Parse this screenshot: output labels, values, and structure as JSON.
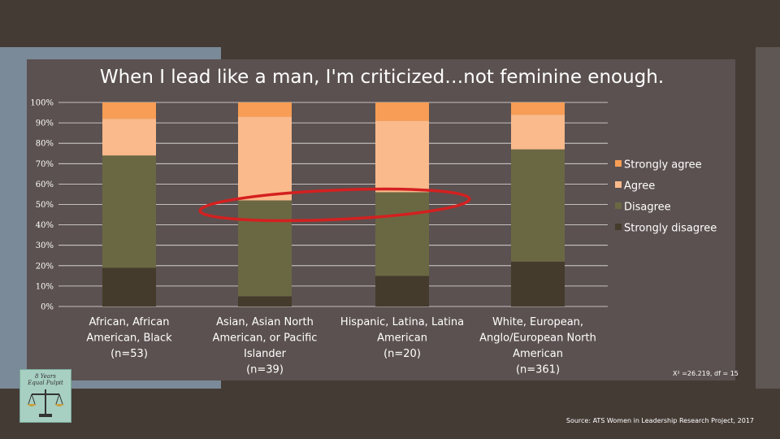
{
  "chart_data": {
    "type": "bar",
    "stacked": true,
    "title": "When I lead like a man, I'm criticized…not feminine enough.",
    "categories": [
      [
        "African, African",
        "American, Black",
        "(n=53)"
      ],
      [
        "Asian, Asian North",
        "American, or Pacific",
        "Islander",
        "(n=39)"
      ],
      [
        "Hispanic, Latina, Latina",
        "American",
        "(n=20)"
      ],
      [
        "White, European,",
        "Anglo/European North",
        "American",
        "(n=361)"
      ]
    ],
    "series": [
      {
        "name": "Strongly disagree",
        "color": "#453b2c",
        "values": [
          19,
          5,
          15,
          22
        ]
      },
      {
        "name": "Disagree",
        "color": "#6a6843",
        "values": [
          55,
          47,
          41,
          55
        ]
      },
      {
        "name": "Agree",
        "color": "#fbba8b",
        "values": [
          18,
          41,
          35,
          17
        ]
      },
      {
        "name": "Strongly agree",
        "color": "#f79d55",
        "values": [
          8,
          7,
          9,
          6
        ]
      }
    ],
    "legend_order": [
      "Strongly agree",
      "Agree",
      "Disagree",
      "Strongly disagree"
    ],
    "legend_position": "right",
    "ylim": [
      0,
      100
    ],
    "yticks": [
      "0%",
      "10%",
      "20%",
      "30%",
      "40%",
      "50%",
      "60%",
      "70%",
      "80%",
      "90%",
      "100%"
    ],
    "grid": true,
    "annotation": "highlight ellipse around Disagree/Agree boundary (red)",
    "annotation_color": "#d42020"
  },
  "stat_text": "X² =26.219, df = 15",
  "source_text": "Source: ATS Women in Leadership Research Project, 2017",
  "logo_text": [
    "8 Years",
    "Equal Pulpit"
  ],
  "colors": {
    "background": "#453b35",
    "panel": "#5b5150",
    "accent_blue": "#7a8a98",
    "gridline": "#ffffff"
  }
}
